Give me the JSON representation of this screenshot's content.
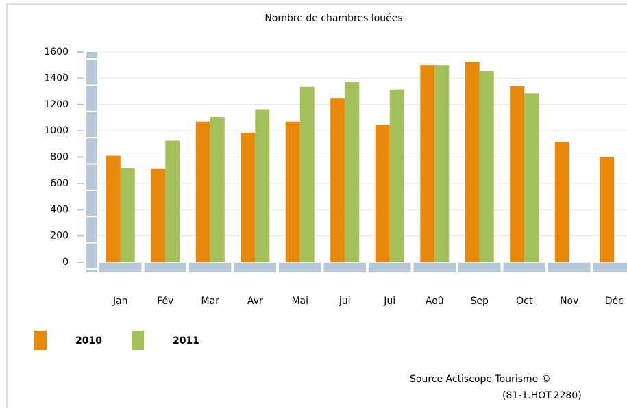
{
  "chart_data": {
    "type": "bar",
    "title": "Nombre de chambres louées",
    "categories": [
      "Jan",
      "Fév",
      "Mar",
      "Avr",
      "Mai",
      "jui",
      "Jui",
      "Aoû",
      "Sep",
      "Oct",
      "Nov",
      "Déc"
    ],
    "series": [
      {
        "name": "2010",
        "color": "#e8890c",
        "values": [
          810,
          710,
          1070,
          985,
          1070,
          1250,
          1045,
          1500,
          1525,
          1340,
          915,
          800
        ]
      },
      {
        "name": "2011",
        "color": "#a4c05a",
        "values": [
          715,
          925,
          1105,
          1165,
          1335,
          1370,
          1315,
          1500,
          1455,
          1285,
          null,
          null
        ]
      }
    ],
    "ylim": [
      0,
      1600
    ],
    "yticks": [
      0,
      200,
      400,
      600,
      800,
      1000,
      1200,
      1400,
      1600
    ],
    "grid": true,
    "source": [
      "Source Actiscope Tourisme ©",
      "(81-1.HOT.2280)"
    ]
  }
}
